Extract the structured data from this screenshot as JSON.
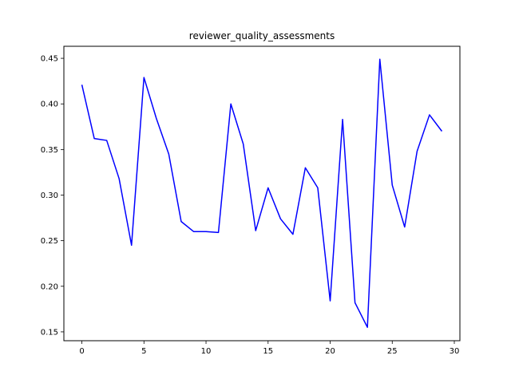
{
  "chart_data": {
    "type": "line",
    "title": "reviewer_quality_assessments",
    "xlabel": "",
    "ylabel": "",
    "xlim": [
      -1.45,
      30.45
    ],
    "ylim": [
      0.1403,
      0.4632
    ],
    "xticks": [
      0,
      5,
      10,
      15,
      20,
      25,
      30
    ],
    "yticks": [
      0.15,
      0.2,
      0.25,
      0.3,
      0.35,
      0.4,
      0.45
    ],
    "xtick_labels": [
      "0",
      "5",
      "10",
      "15",
      "20",
      "25",
      "30"
    ],
    "ytick_labels": [
      "0.15",
      "0.20",
      "0.25",
      "0.30",
      "0.35",
      "0.40",
      "0.45"
    ],
    "grid": false,
    "series": [
      {
        "color": "#0000ff",
        "x": [
          0,
          1,
          2,
          3,
          4,
          5,
          6,
          7,
          8,
          9,
          10,
          11,
          12,
          13,
          14,
          15,
          16,
          17,
          18,
          19,
          20,
          21,
          22,
          23,
          24,
          25,
          26,
          27,
          28,
          29
        ],
        "values": [
          0.421,
          0.362,
          0.36,
          0.318,
          0.245,
          0.429,
          0.384,
          0.345,
          0.271,
          0.26,
          0.26,
          0.259,
          0.4,
          0.356,
          0.261,
          0.308,
          0.274,
          0.257,
          0.33,
          0.308,
          0.184,
          0.383,
          0.182,
          0.155,
          0.449,
          0.311,
          0.265,
          0.348,
          0.388,
          0.37
        ]
      }
    ]
  }
}
